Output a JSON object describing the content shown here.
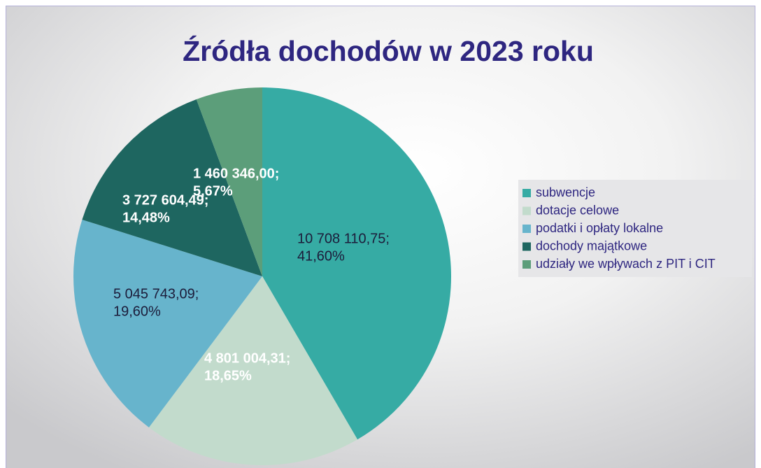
{
  "chart_data": {
    "type": "pie",
    "title": "Źródła dochodów w 2023 roku",
    "categories": [
      "subwencje",
      "dotacje celowe",
      "podatki i opłaty lokalne",
      "dochody majątkowe",
      "udziały we wpływach z PIT i CIT"
    ],
    "values": [
      10708110.75,
      4801004.31,
      5045743.09,
      3727604.49,
      1460346.0
    ],
    "value_labels": [
      [
        "10 708 110,75;",
        "41,60%"
      ],
      [
        "4 801 004,31;",
        "18,65%"
      ],
      [
        "5 045 743,09;",
        "19,60%"
      ],
      [
        "3 727 604,49;",
        "14,48%"
      ],
      [
        "1 460 346,00;",
        "5,67%"
      ]
    ],
    "colors": [
      "#36aba4",
      "#c2dbcc",
      "#67b4cc",
      "#1e6660",
      "#5c9e7a"
    ],
    "legend": "right"
  }
}
